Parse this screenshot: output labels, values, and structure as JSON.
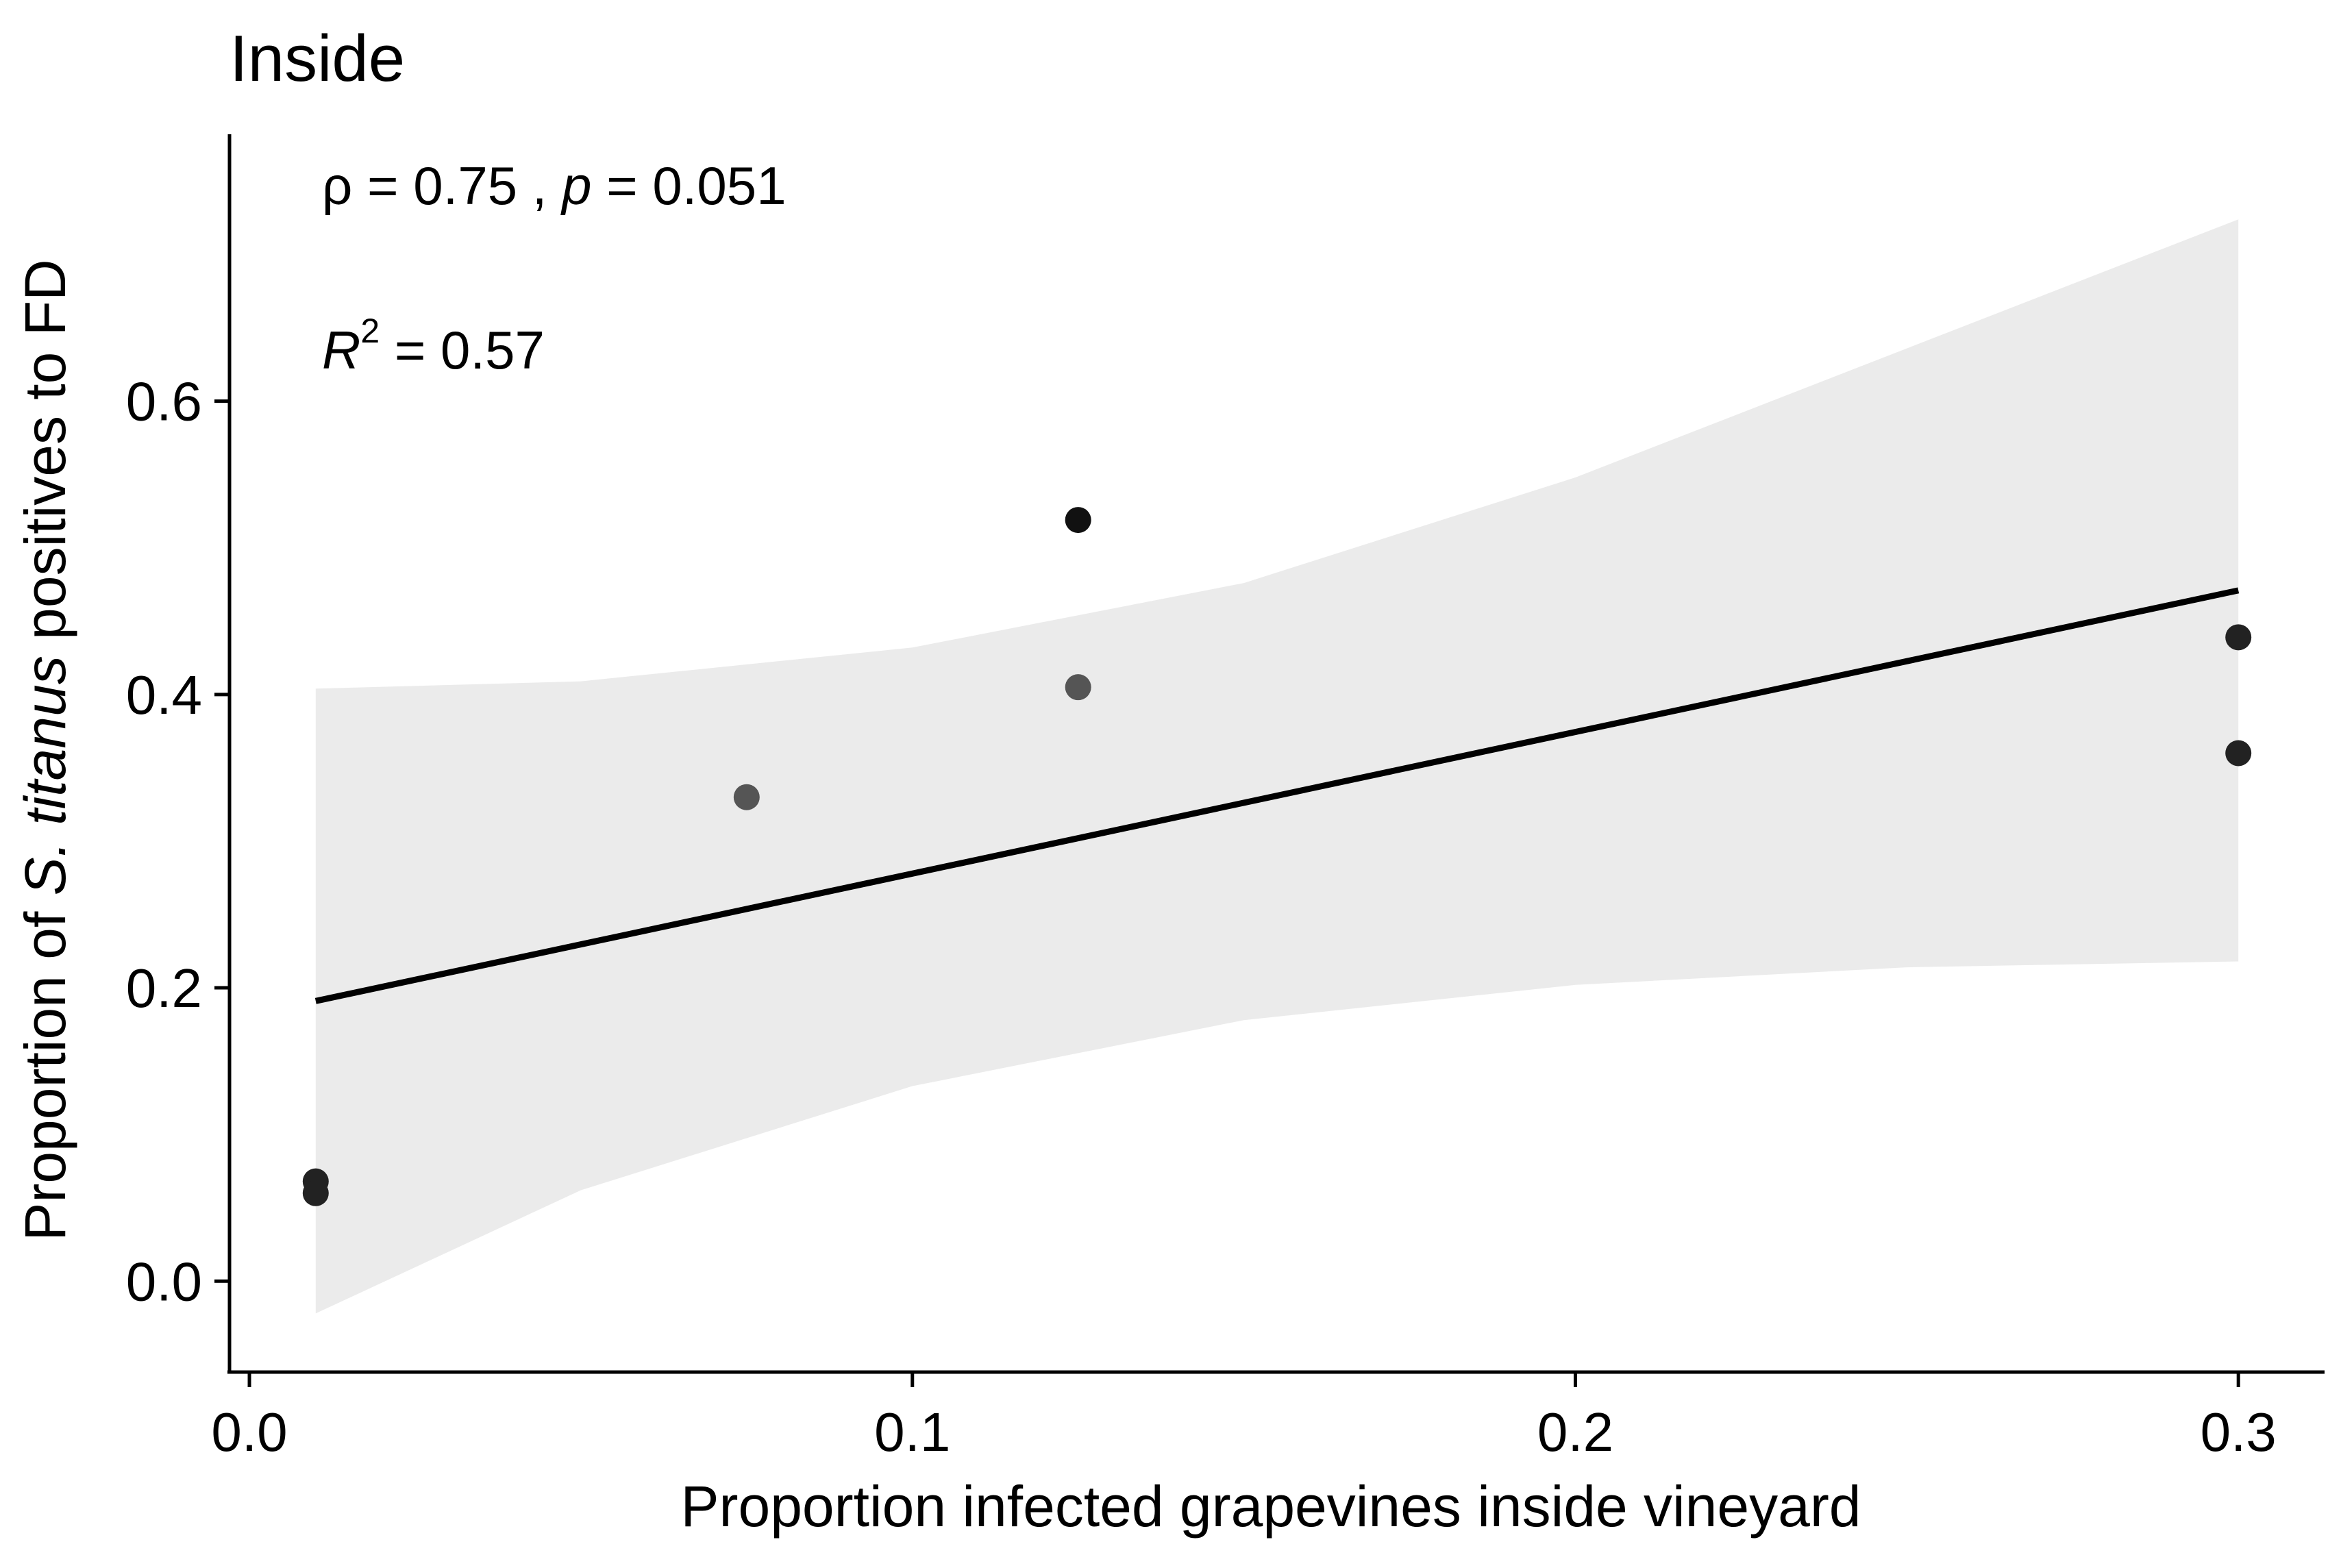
{
  "chart_data": {
    "type": "scatter",
    "title": "Inside",
    "xlabel": "Proportion infected grapevines inside vineyard",
    "ylabel": {
      "prefix": "Proportion of ",
      "species": "S. titanus",
      "suffix": " positives to FD"
    },
    "xlim": [
      -0.003,
      0.313
    ],
    "ylim": [
      -0.062,
      0.782
    ],
    "xticks": [
      {
        "value": 0.0,
        "label": "0.0"
      },
      {
        "value": 0.1,
        "label": "0.1"
      },
      {
        "value": 0.2,
        "label": "0.2"
      },
      {
        "value": 0.3,
        "label": "0.3"
      }
    ],
    "yticks": [
      {
        "value": 0.0,
        "label": "0.0"
      },
      {
        "value": 0.2,
        "label": "0.2"
      },
      {
        "value": 0.4,
        "label": "0.4"
      },
      {
        "value": 0.6,
        "label": "0.6"
      }
    ],
    "grid": false,
    "series": [
      {
        "name": "observations",
        "points": [
          {
            "x": 0.01,
            "y": 0.068,
            "color": "#222222"
          },
          {
            "x": 0.01,
            "y": 0.06,
            "color": "#222222"
          },
          {
            "x": 0.075,
            "y": 0.33,
            "color": "#555555"
          },
          {
            "x": 0.125,
            "y": 0.519,
            "color": "#111111"
          },
          {
            "x": 0.125,
            "y": 0.405,
            "color": "#555555"
          },
          {
            "x": 0.3,
            "y": 0.439,
            "color": "#222222"
          },
          {
            "x": 0.3,
            "y": 0.36,
            "color": "#222222"
          }
        ]
      }
    ],
    "regression": {
      "x": [
        0.01,
        0.3
      ],
      "y": [
        0.191,
        0.471
      ],
      "color": "#000000"
    },
    "confidence_band": {
      "color": "#ebebeb",
      "upper": [
        {
          "x": 0.01,
          "y": 0.404
        },
        {
          "x": 0.05,
          "y": 0.409
        },
        {
          "x": 0.1,
          "y": 0.432
        },
        {
          "x": 0.15,
          "y": 0.476
        },
        {
          "x": 0.2,
          "y": 0.548
        },
        {
          "x": 0.25,
          "y": 0.636
        },
        {
          "x": 0.3,
          "y": 0.724
        }
      ],
      "lower": [
        {
          "x": 0.01,
          "y": -0.022
        },
        {
          "x": 0.05,
          "y": 0.062
        },
        {
          "x": 0.1,
          "y": 0.133
        },
        {
          "x": 0.15,
          "y": 0.178
        },
        {
          "x": 0.2,
          "y": 0.202
        },
        {
          "x": 0.25,
          "y": 0.214
        },
        {
          "x": 0.3,
          "y": 0.218
        }
      ]
    },
    "annotations": {
      "correlation": {
        "rho_symbol": "ρ",
        "rho_text": " = 0.75 , ",
        "p_symbol": "p",
        "p_text": " = 0.051"
      },
      "r_squared": {
        "symbol": "R",
        "exponent": "2",
        "text": " = 0.57"
      }
    }
  }
}
